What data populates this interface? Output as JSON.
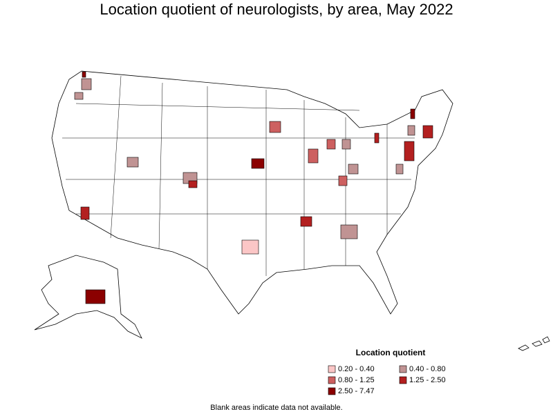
{
  "title": "Location quotient of neurologists, by area, May 2022",
  "legend": {
    "title": "Location quotient",
    "items": [
      {
        "label": "0.20 - 0.40",
        "color": "#fbc6c6"
      },
      {
        "label": "0.40 - 0.80",
        "color": "#c09393"
      },
      {
        "label": "0.80 - 1.25",
        "color": "#cd6060"
      },
      {
        "label": "1.25 - 2.50",
        "color": "#b32020"
      },
      {
        "label": "2.50 - 7.47",
        "color": "#8b0000"
      }
    ]
  },
  "note": "Blank areas indicate data not available."
}
